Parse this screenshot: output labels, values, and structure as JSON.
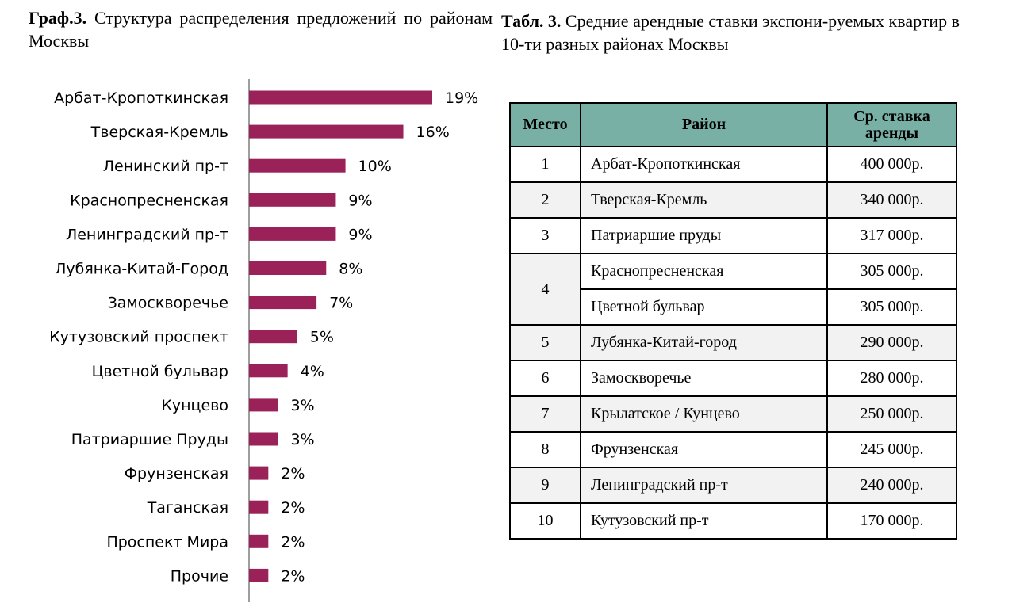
{
  "chart_caption": {
    "label": "Граф.3.",
    "text": "Структура распределения предложений по районам Москвы"
  },
  "table_caption": {
    "label": "Табл. 3.",
    "text": "Средние арендные ставки экспони-руемых квартир в 10-ти разных районах Москвы"
  },
  "colors": {
    "bar": "#9b2159",
    "header": "#78b0a6",
    "row_shade": "#f2f2f2"
  },
  "chart_data": {
    "type": "bar",
    "orientation": "horizontal",
    "categories": [
      "Арбат-Кропоткинская",
      "Тверская-Кремль",
      "Ленинский пр-т",
      "Краснопресненская",
      "Ленинградский пр-т",
      "Лубянка-Китай-Город",
      "Замоскворечье",
      "Кутузовский проспект",
      "Цветной бульвар",
      "Кунцево",
      "Патриаршие Пруды",
      "Фрунзенская",
      "Таганская",
      "Проспект Мира",
      "Прочие"
    ],
    "values": [
      19,
      16,
      10,
      9,
      9,
      8,
      7,
      5,
      4,
      3,
      3,
      2,
      2,
      2,
      2
    ],
    "value_labels": [
      "19%",
      "16%",
      "10%",
      "9%",
      "9%",
      "8%",
      "7%",
      "5%",
      "4%",
      "3%",
      "3%",
      "2%",
      "2%",
      "2%",
      "2%"
    ],
    "xlim": [
      0,
      20
    ],
    "grid": false,
    "legend": "none"
  },
  "table": {
    "headers": [
      "Место",
      "Район",
      "Ср. ставка аренды"
    ],
    "rows": [
      {
        "rank": "1",
        "district": "Арбат-Кропоткинская",
        "rate": "400 000р."
      },
      {
        "rank": "2",
        "district": "Тверская-Кремль",
        "rate": "340 000р."
      },
      {
        "rank": "3",
        "district": "Патриаршие пруды",
        "rate": "317 000р."
      },
      {
        "rank": "4",
        "district": "Краснопресненская",
        "rate": "305 000р."
      },
      {
        "rank": "",
        "district": "Цветной бульвар",
        "rate": "305 000р."
      },
      {
        "rank": "5",
        "district": "Лубянка-Китай-город",
        "rate": "290 000р."
      },
      {
        "rank": "6",
        "district": "Замоскворечье",
        "rate": "280 000р."
      },
      {
        "rank": "7",
        "district": "Крылатское / Кунцево",
        "rate": "250 000р."
      },
      {
        "rank": "8",
        "district": "Фрунзенская",
        "rate": "245 000р."
      },
      {
        "rank": "9",
        "district": "Ленинградский пр-т",
        "rate": "240 000р."
      },
      {
        "rank": "10",
        "district": "Кутузовский пр-т",
        "rate": "170 000р."
      }
    ]
  }
}
